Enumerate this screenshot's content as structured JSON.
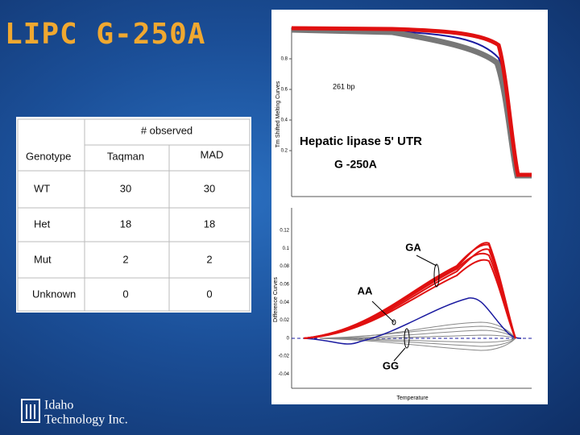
{
  "title": "LIPC G-250A",
  "table": {
    "group_header": "# observed",
    "columns": [
      "Genotype",
      "Taqman",
      "MAD"
    ],
    "rows": [
      [
        "WT",
        "30",
        "30"
      ],
      [
        "Het",
        "18",
        "18"
      ],
      [
        "Mut",
        "2",
        "2"
      ],
      [
        "Unknown",
        "0",
        "0"
      ]
    ]
  },
  "figure": {
    "top_panel": {
      "y_axis_label": "Tm Shifted Melting Curves",
      "yticks": [
        "0.8",
        "0.6",
        "0.4",
        "0.2"
      ],
      "annotation": "261 bp",
      "gene": "Hepatic lipase 5' UTR",
      "variant": "G -250A"
    },
    "bottom_panel": {
      "y_axis_label": "Difference Curves",
      "x_axis_label": "Temperature",
      "yticks": [
        "0.12",
        "0.1",
        "0.08",
        "0.06",
        "0.04",
        "0.02",
        "0",
        "-0.02",
        "-0.04"
      ],
      "labels": [
        "GA",
        "AA",
        "GG"
      ]
    }
  },
  "logo": {
    "line1": "Idaho",
    "line2": "Technology Inc."
  }
}
